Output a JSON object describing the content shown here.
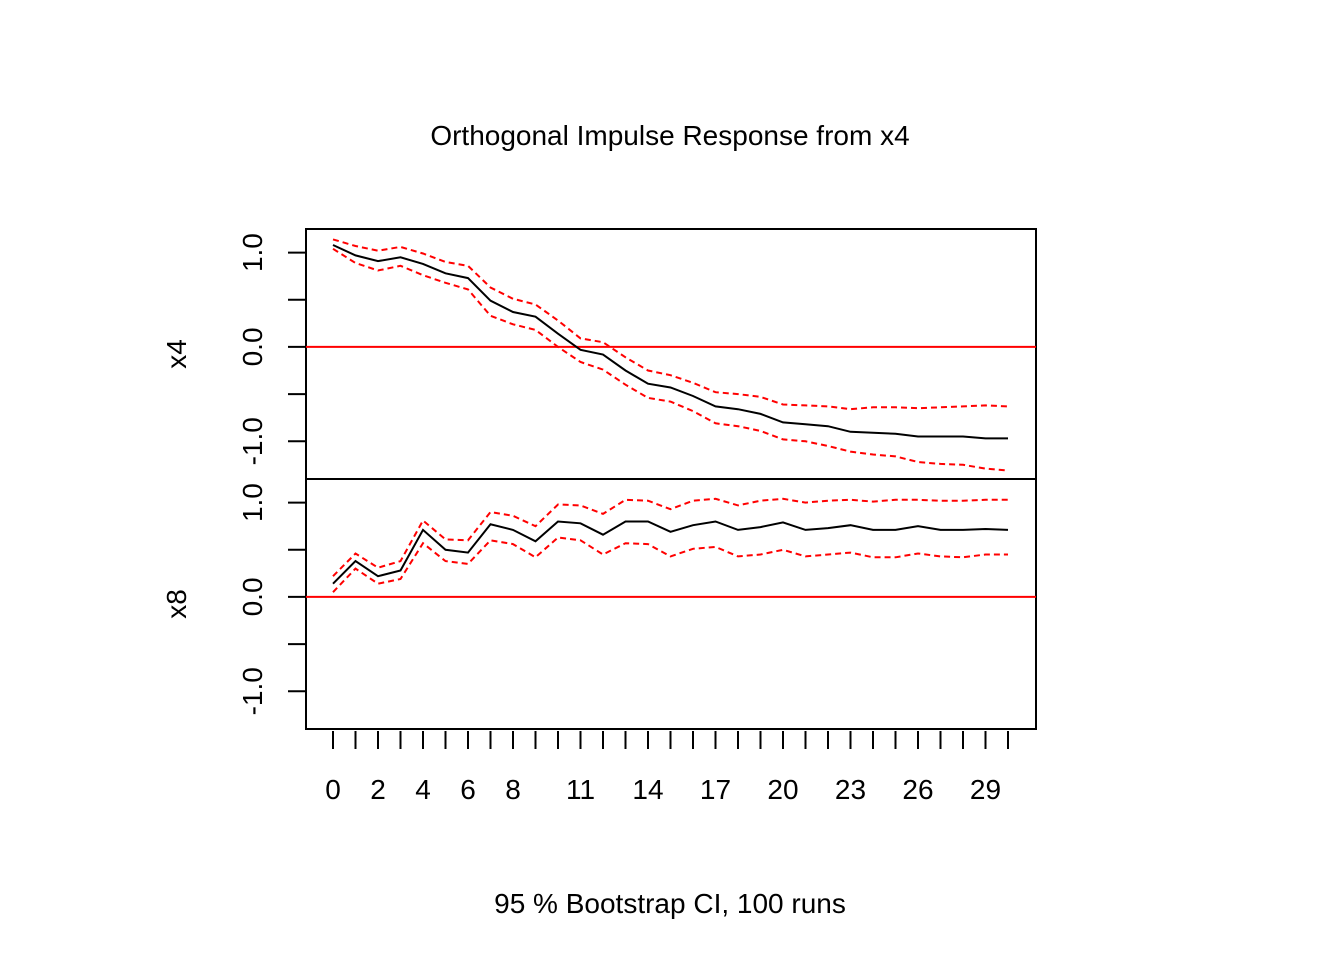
{
  "chart_data": {
    "type": "line",
    "title": "Orthogonal Impulse Response from x4",
    "xlabel": "95 % Bootstrap CI,  100 runs",
    "x": [
      0,
      1,
      2,
      3,
      4,
      5,
      6,
      7,
      8,
      9,
      10,
      11,
      12,
      13,
      14,
      15,
      16,
      17,
      18,
      19,
      20,
      21,
      22,
      23,
      24,
      25,
      26,
      27,
      28,
      29,
      30
    ],
    "x_tick_labels": [
      "0",
      "2",
      "4",
      "6",
      "8",
      "11",
      "14",
      "17",
      "20",
      "23",
      "26",
      "29"
    ],
    "x_tick_values": [
      0,
      2,
      4,
      6,
      8,
      11,
      14,
      17,
      20,
      23,
      26,
      29
    ],
    "colors": {
      "response": "#000000",
      "ci": "#ff0000",
      "zero_line": "#ff0000"
    },
    "panels": [
      {
        "name": "x4",
        "ylim": [
          -1.4,
          1.25
        ],
        "y_tick_labels": [
          "-1.0",
          "0.0",
          "1.0"
        ],
        "y_tick_values": [
          -1.0,
          0.0,
          1.0
        ],
        "y_minor_ticks": [
          -1.0,
          -0.5,
          0.0,
          0.5,
          1.0
        ],
        "response": [
          1.08,
          0.97,
          0.91,
          0.95,
          0.88,
          0.78,
          0.73,
          0.49,
          0.37,
          0.32,
          0.14,
          -0.03,
          -0.08,
          -0.25,
          -0.39,
          -0.43,
          -0.52,
          -0.63,
          -0.66,
          -0.71,
          -0.8,
          -0.82,
          -0.84,
          -0.9,
          -0.91,
          -0.92,
          -0.95,
          -0.95,
          -0.95,
          -0.97,
          -0.97
        ],
        "lower": [
          1.04,
          0.89,
          0.81,
          0.86,
          0.76,
          0.68,
          0.61,
          0.33,
          0.24,
          0.18,
          0.0,
          -0.16,
          -0.24,
          -0.4,
          -0.54,
          -0.58,
          -0.68,
          -0.81,
          -0.84,
          -0.89,
          -0.98,
          -1.0,
          -1.05,
          -1.11,
          -1.14,
          -1.16,
          -1.22,
          -1.24,
          -1.25,
          -1.29,
          -1.31
        ],
        "upper": [
          1.14,
          1.07,
          1.02,
          1.06,
          0.99,
          0.9,
          0.86,
          0.63,
          0.51,
          0.45,
          0.28,
          0.09,
          0.05,
          -0.11,
          -0.25,
          -0.3,
          -0.38,
          -0.48,
          -0.5,
          -0.53,
          -0.61,
          -0.62,
          -0.63,
          -0.66,
          -0.64,
          -0.64,
          -0.65,
          -0.64,
          -0.63,
          -0.62,
          -0.63
        ]
      },
      {
        "name": "x8",
        "ylim": [
          -1.4,
          1.25
        ],
        "y_tick_labels": [
          "-1.0",
          "0.0",
          "1.0"
        ],
        "y_tick_values": [
          -1.0,
          0.0,
          1.0
        ],
        "y_minor_ticks": [
          -1.0,
          -0.5,
          0.0,
          0.5,
          1.0
        ],
        "response": [
          0.14,
          0.38,
          0.22,
          0.28,
          0.71,
          0.5,
          0.47,
          0.77,
          0.71,
          0.59,
          0.8,
          0.78,
          0.66,
          0.8,
          0.8,
          0.69,
          0.76,
          0.8,
          0.71,
          0.74,
          0.79,
          0.71,
          0.73,
          0.76,
          0.71,
          0.71,
          0.75,
          0.71,
          0.71,
          0.72,
          0.71
        ],
        "lower": [
          0.05,
          0.3,
          0.14,
          0.19,
          0.57,
          0.38,
          0.35,
          0.6,
          0.56,
          0.42,
          0.63,
          0.6,
          0.45,
          0.57,
          0.56,
          0.43,
          0.51,
          0.53,
          0.43,
          0.45,
          0.5,
          0.43,
          0.45,
          0.47,
          0.42,
          0.42,
          0.46,
          0.43,
          0.42,
          0.45,
          0.45
        ],
        "upper": [
          0.22,
          0.46,
          0.31,
          0.38,
          0.81,
          0.61,
          0.6,
          0.9,
          0.86,
          0.75,
          0.98,
          0.97,
          0.88,
          1.03,
          1.02,
          0.93,
          1.02,
          1.04,
          0.97,
          1.02,
          1.04,
          1.0,
          1.02,
          1.03,
          1.01,
          1.03,
          1.03,
          1.02,
          1.02,
          1.03,
          1.03
        ]
      }
    ]
  }
}
